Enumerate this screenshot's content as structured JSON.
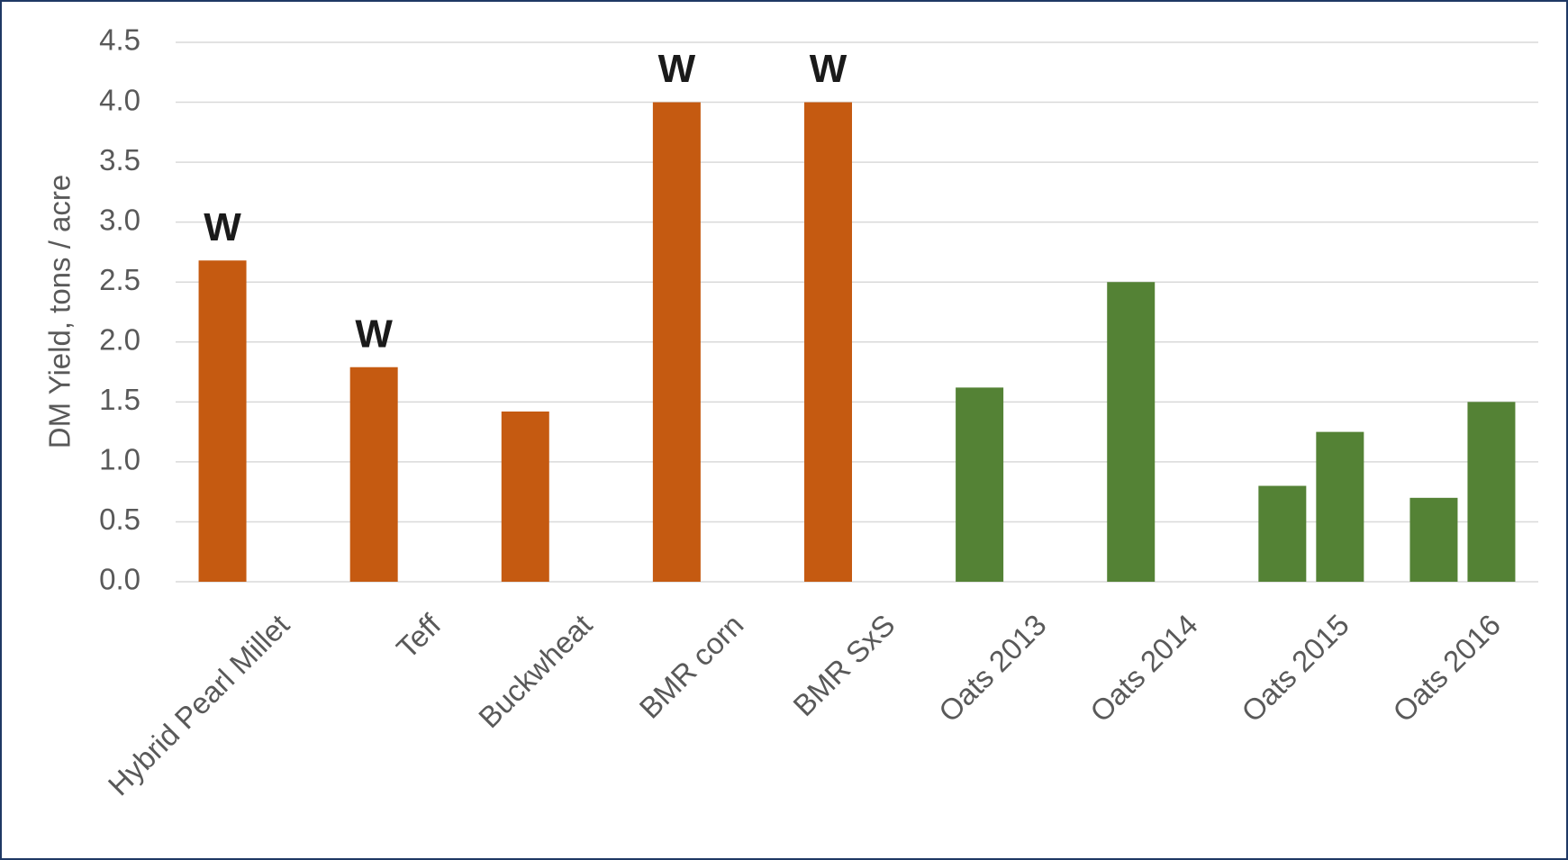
{
  "chart_data": {
    "type": "bar",
    "ylabel": "DM Yield, tons / acre",
    "categories": [
      "Hybrid Pearl Millet",
      "Teff",
      "Buckwheat",
      "BMR corn",
      "BMR SxS",
      "Oats 2013",
      "Oats 2014",
      "Oats 2015",
      "Oats 2016"
    ],
    "series": [
      {
        "values": [
          2.68,
          1.79,
          1.42,
          4.0,
          4.0,
          1.62,
          2.5,
          0.8,
          0.7
        ],
        "colors": [
          "#c55a11",
          "#c55a11",
          "#c55a11",
          "#c55a11",
          "#c55a11",
          "#548235",
          "#548235",
          "#548235",
          "#548235"
        ],
        "labels": [
          "W",
          "W",
          null,
          "W",
          "W",
          null,
          null,
          null,
          null
        ]
      },
      {
        "values": [
          null,
          null,
          null,
          null,
          null,
          null,
          null,
          1.25,
          1.5
        ],
        "colors": [
          null,
          null,
          null,
          null,
          null,
          null,
          null,
          "#548235",
          "#548235"
        ]
      }
    ],
    "ylim": [
      0,
      4.5
    ],
    "yticks": [
      {
        "value": 0,
        "label": "0.0"
      },
      0.5,
      {
        "value": 1,
        "label": "1.0"
      },
      1.5,
      {
        "value": 2,
        "label": "2.0"
      },
      2.5,
      {
        "value": 3,
        "label": "3.0"
      },
      3.5,
      {
        "value": 4,
        "label": "4.0"
      },
      4.5
    ],
    "grid": true
  }
}
